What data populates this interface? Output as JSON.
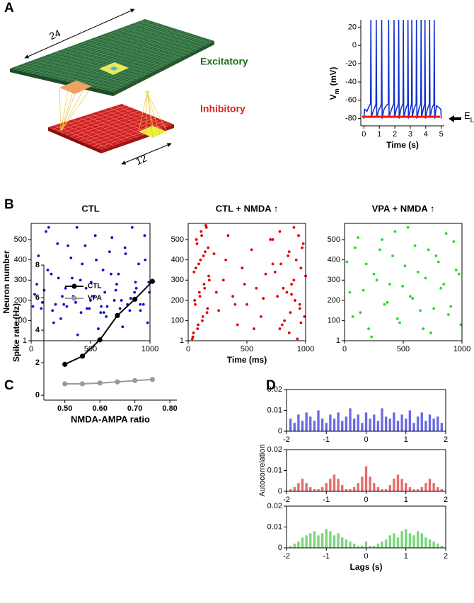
{
  "panel_labels": [
    "A",
    "B",
    "C",
    "D"
  ],
  "diagram": {
    "excitatory": "Excitatory",
    "inhibitory": "Inhibitory",
    "side_long": 24,
    "side_short": 12
  },
  "chart_data": [
    {
      "type": "line",
      "color": "#1030d0",
      "ylabel_parts": [
        "V",
        "m",
        "(mV)"
      ],
      "xlabel": "Time (s)",
      "xlim": [
        -0.2,
        5.2
      ],
      "xticks": [
        0,
        1,
        2,
        3,
        4,
        5
      ],
      "ylim": [
        -88,
        28
      ],
      "yticks": [
        -80,
        -60,
        -40,
        -20,
        0,
        20
      ],
      "x": [
        0,
        0.05,
        0.2,
        0.35,
        0.43,
        0.45,
        0.48,
        0.6,
        0.7,
        0.78,
        0.8,
        0.83,
        0.95,
        1.05,
        1.13,
        1.15,
        1.18,
        1.3,
        1.45,
        1.58,
        1.6,
        1.63,
        1.75,
        1.85,
        1.93,
        1.95,
        1.98,
        2.1,
        2.23,
        2.25,
        2.28,
        2.4,
        2.53,
        2.55,
        2.58,
        2.7,
        2.83,
        2.85,
        2.88,
        3.0,
        3.08,
        3.1,
        3.13,
        3.25,
        3.38,
        3.4,
        3.43,
        3.55,
        3.68,
        3.7,
        3.73,
        3.85,
        3.93,
        3.95,
        3.98,
        4.1,
        4.23,
        4.25,
        4.28,
        4.4,
        4.53,
        4.55,
        4.58,
        4.7,
        4.85,
        4.98,
        5.0
      ],
      "values": [
        -80,
        -70,
        -72,
        -66,
        -64,
        28,
        -78,
        -72,
        -68,
        -64,
        28,
        -79,
        -71,
        -68,
        -64,
        28,
        -80,
        -70,
        -66,
        -64,
        28,
        -78,
        -72,
        -67,
        -64,
        28,
        -79,
        -70,
        -64,
        28,
        -80,
        -69,
        -64,
        28,
        -79,
        -70,
        -64,
        28,
        -80,
        -70,
        -64,
        28,
        -78,
        -69,
        -64,
        28,
        -80,
        -70,
        -64,
        28,
        -79,
        -69,
        -64,
        28,
        -80,
        -70,
        -64,
        28,
        -79,
        -69,
        -64,
        28,
        -80,
        -66,
        -68,
        -70,
        -80
      ],
      "reference": {
        "value": -78,
        "color": "#ff1010",
        "label_parts": [
          "E",
          "L"
        ]
      }
    },
    {
      "type": "scatter",
      "title": "CTL",
      "color": "#1010c8",
      "ylabel": "Neuron number",
      "xlim": [
        0,
        1000
      ],
      "xticks": [
        0,
        500,
        1000
      ],
      "ylim": [
        1,
        580
      ],
      "yticks": [
        1,
        100,
        200,
        300,
        400,
        500
      ],
      "x": [
        15,
        62,
        110,
        148,
        190,
        230,
        275,
        310,
        355,
        392,
        430,
        470,
        505,
        540,
        585,
        620,
        660,
        700,
        735,
        770,
        810,
        850,
        885,
        920,
        960,
        990,
        30,
        85,
        125,
        170,
        205,
        250,
        290,
        335,
        375,
        415,
        455,
        490,
        525,
        565,
        605,
        640,
        680,
        720,
        760,
        795,
        830,
        870,
        905,
        945,
        980,
        48,
        95,
        140,
        180,
        222,
        262,
        300,
        345,
        385,
        420,
        462,
        500,
        548,
        590,
        632,
        672,
        712,
        748,
        790,
        838,
        878,
        918,
        955,
        995,
        612
      ],
      "values": [
        170,
        420,
        250,
        560,
        90,
        310,
        180,
        470,
        220,
        30,
        380,
        160,
        290,
        520,
        140,
        240,
        440,
        200,
        330,
        70,
        180,
        560,
        260,
        150,
        400,
        290,
        230,
        160,
        540,
        330,
        180,
        110,
        260,
        410,
        190,
        300,
        470,
        160,
        220,
        60,
        350,
        170,
        510,
        280,
        200,
        430,
        150,
        240,
        380,
        180,
        90,
        280,
        190,
        350,
        150,
        480,
        220,
        170,
        310,
        560,
        140,
        260,
        200,
        400,
        170,
        120,
        330,
        250,
        160,
        460,
        210,
        290,
        180,
        520,
        240,
        140
      ]
    },
    {
      "type": "scatter",
      "title": "CTL + NMDA ↑",
      "color": "#e00000",
      "xlabel": "Time (ms)",
      "xlim": [
        0,
        1000
      ],
      "xticks": [
        0,
        500,
        1000
      ],
      "ylim": [
        1,
        580
      ],
      "yticks": [
        1,
        100,
        200,
        300,
        400,
        500
      ],
      "x": [
        40,
        80,
        120,
        160,
        60,
        100,
        140,
        180,
        50,
        90,
        130,
        170,
        70,
        110,
        150,
        45,
        85,
        125,
        165,
        55,
        95,
        135,
        175,
        65,
        105,
        145,
        75,
        115,
        155,
        35,
        900,
        940,
        980,
        860,
        920,
        960,
        1000,
        880,
        840,
        910,
        950,
        990,
        800,
        860,
        930,
        780,
        820,
        870,
        950,
        760,
        810,
        900,
        740,
        790,
        850,
        970,
        720,
        780,
        880,
        960,
        220,
        260,
        300,
        340,
        380,
        420,
        460,
        500,
        540,
        580,
        620,
        660,
        700,
        240,
        320,
        400,
        480,
        560,
        640,
        720
      ],
      "values": [
        20,
        60,
        100,
        140,
        180,
        220,
        260,
        300,
        340,
        380,
        420,
        460,
        500,
        540,
        570,
        40,
        80,
        120,
        160,
        200,
        240,
        280,
        320,
        360,
        400,
        440,
        480,
        520,
        560,
        10,
        560,
        520,
        480,
        440,
        400,
        360,
        320,
        280,
        240,
        200,
        160,
        120,
        80,
        40,
        10,
        60,
        100,
        140,
        180,
        220,
        260,
        300,
        340,
        380,
        420,
        460,
        500,
        540,
        230,
        90,
        430,
        150,
        300,
        520,
        220,
        80,
        360,
        180,
        450,
        260,
        120,
        330,
        500,
        240,
        400,
        180,
        280,
        60,
        210,
        380
      ]
    },
    {
      "type": "scatter",
      "title": "VPA + NMDA ↑",
      "color": "#22dd22",
      "xlim": [
        0,
        1000
      ],
      "xticks": [
        0,
        500,
        1000
      ],
      "ylim": [
        1,
        580
      ],
      "yticks": [
        1,
        100,
        200,
        300,
        400,
        500
      ],
      "x": [
        20,
        70,
        115,
        160,
        205,
        250,
        300,
        340,
        385,
        430,
        470,
        515,
        560,
        600,
        645,
        690,
        735,
        780,
        820,
        865,
        905,
        950,
        990,
        45,
        90,
        135,
        185,
        230,
        275,
        320,
        365,
        410,
        450,
        495,
        540,
        580,
        625,
        670,
        715,
        760,
        800,
        845,
        885,
        930,
        975
      ],
      "values": [
        390,
        120,
        510,
        250,
        60,
        330,
        450,
        180,
        280,
        540,
        90,
        370,
        220,
        470,
        150,
        310,
        40,
        420,
        260,
        530,
        170,
        350,
        80,
        240,
        460,
        140,
        380,
        20,
        300,
        500,
        190,
        420,
        110,
        270,
        560,
        210,
        340,
        60,
        450,
        160,
        390,
        280,
        130,
        490,
        330
      ]
    },
    {
      "type": "line",
      "xlabel": "NMDA-AMPA ratio",
      "ylabel": "Spike rate (Hz)",
      "legend": "upper left",
      "xlim": [
        0.44,
        0.82
      ],
      "xticks": [
        {
          "value": 0.5,
          "label": "0.50"
        },
        {
          "value": 0.6,
          "label": "0.60"
        },
        {
          "value": 0.7,
          "label": "0.70"
        },
        {
          "value": 0.8,
          "label": "0.80"
        }
      ],
      "ylim": [
        -0.3,
        8
      ],
      "yticks": [
        0,
        2,
        4,
        6,
        8
      ],
      "x": [
        0.5,
        0.55,
        0.6,
        0.65,
        0.7,
        0.75
      ],
      "series": [
        {
          "name": "CTL",
          "color": "#000000",
          "values": [
            1.9,
            2.4,
            3.4,
            4.9,
            5.9,
            7.0
          ]
        },
        {
          "name": "VPA",
          "color": "#999999",
          "values": [
            0.7,
            0.7,
            0.75,
            0.82,
            0.9,
            0.97
          ]
        }
      ]
    },
    {
      "type": "bar",
      "color": "#6a6ae8",
      "xlim": [
        -2,
        2
      ],
      "xticks": [
        -2,
        -1,
        0,
        1,
        2
      ],
      "ylim": [
        0,
        0.02
      ],
      "yticks": [
        0,
        0.01,
        0.02
      ],
      "x": [
        -1.9,
        -1.8,
        -1.7,
        -1.6,
        -1.5,
        -1.4,
        -1.3,
        -1.2,
        -1.1,
        -1,
        -0.9,
        -0.8,
        -0.7,
        -0.6,
        -0.5,
        -0.4,
        -0.3,
        -0.2,
        -0.1,
        0,
        0.1,
        0.2,
        0.3,
        0.4,
        0.5,
        0.6,
        0.7,
        0.8,
        0.9,
        1,
        1.1,
        1.2,
        1.3,
        1.4,
        1.5,
        1.6,
        1.7,
        1.8,
        1.9
      ],
      "values": [
        0.006,
        0.004,
        0.008,
        0.005,
        0.009,
        0.007,
        0.005,
        0.01,
        0.006,
        0.004,
        0.008,
        0.006,
        0.009,
        0.005,
        0.007,
        0.011,
        0.006,
        0.008,
        0.004,
        0.009,
        0.006,
        0.008,
        0.005,
        0.011,
        0.007,
        0.006,
        0.009,
        0.005,
        0.008,
        0.006,
        0.01,
        0.004,
        0.007,
        0.009,
        0.005,
        0.008,
        0.006,
        0.007,
        0.004
      ]
    },
    {
      "type": "bar",
      "color": "#e86a6a",
      "ylabel": "Autocorrelation",
      "xlim": [
        -2,
        2
      ],
      "xticks": [
        -2,
        -1,
        0,
        1,
        2
      ],
      "ylim": [
        0,
        0.02
      ],
      "yticks": [
        0,
        0.01,
        0.02
      ],
      "x": [
        -1.9,
        -1.8,
        -1.7,
        -1.6,
        -1.5,
        -1.4,
        -1.3,
        -1.2,
        -1.1,
        -1,
        -0.9,
        -0.8,
        -0.7,
        -0.6,
        -0.5,
        -0.4,
        -0.3,
        -0.2,
        -0.1,
        0,
        0.1,
        0.2,
        0.3,
        0.4,
        0.5,
        0.6,
        0.7,
        0.8,
        0.9,
        1,
        1.1,
        1.2,
        1.3,
        1.4,
        1.5,
        1.6,
        1.7,
        1.8,
        1.9
      ],
      "values": [
        0.001,
        0.002,
        0.004,
        0.006,
        0.004,
        0.002,
        0.001,
        0.001,
        0.002,
        0.004,
        0.006,
        0.008,
        0.006,
        0.003,
        0.001,
        0.001,
        0.002,
        0.004,
        0.007,
        0.012,
        0.007,
        0.004,
        0.002,
        0.001,
        0.001,
        0.003,
        0.006,
        0.008,
        0.006,
        0.004,
        0.002,
        0.001,
        0.001,
        0.002,
        0.004,
        0.006,
        0.004,
        0.002,
        0.001
      ]
    },
    {
      "type": "bar",
      "color": "#7ad67a",
      "xlabel": "Lags (s)",
      "xlim": [
        -2,
        2
      ],
      "xticks": [
        -2,
        -1,
        0,
        1,
        2
      ],
      "ylim": [
        0,
        0.02
      ],
      "yticks": [
        0,
        0.01,
        0.02
      ],
      "x": [
        -1.9,
        -1.8,
        -1.7,
        -1.6,
        -1.5,
        -1.4,
        -1.3,
        -1.2,
        -1.1,
        -1,
        -0.9,
        -0.8,
        -0.7,
        -0.6,
        -0.5,
        -0.4,
        -0.3,
        -0.2,
        -0.1,
        0,
        0.1,
        0.2,
        0.3,
        0.4,
        0.5,
        0.6,
        0.7,
        0.8,
        0.9,
        1,
        1.1,
        1.2,
        1.3,
        1.4,
        1.5,
        1.6,
        1.7,
        1.8,
        1.9
      ],
      "values": [
        0.001,
        0.002,
        0.003,
        0.005,
        0.006,
        0.007,
        0.008,
        0.006,
        0.007,
        0.009,
        0.008,
        0.006,
        0.007,
        0.005,
        0.004,
        0.003,
        0.002,
        0.001,
        0.001,
        0.003,
        0.001,
        0.001,
        0.002,
        0.003,
        0.004,
        0.006,
        0.007,
        0.005,
        0.008,
        0.009,
        0.007,
        0.006,
        0.008,
        0.007,
        0.005,
        0.004,
        0.003,
        0.002,
        0.001
      ]
    }
  ]
}
